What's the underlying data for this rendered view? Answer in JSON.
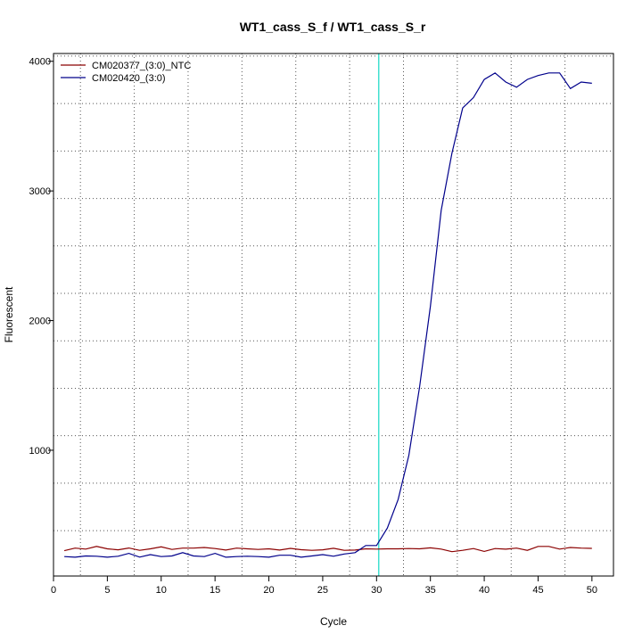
{
  "chart_data": {
    "type": "line",
    "title": "WT1_cass_S_f / WT1_cass_S_r",
    "xlabel": "Cycle",
    "ylabel": "Fluorescent",
    "xlim": [
      0,
      52
    ],
    "ylim": [
      30,
      4060
    ],
    "x_ticks": [
      "0",
      "5",
      "10",
      "15",
      "20",
      "25",
      "30",
      "35",
      "40",
      "45",
      "50"
    ],
    "y_ticks": [
      "1000",
      "2000",
      "3000",
      "4000"
    ],
    "grid": true,
    "legend_position": "top-left",
    "threshold_cycle": 30.2,
    "threshold_color": "#40e0d0",
    "x": [
      1,
      2,
      3,
      4,
      5,
      6,
      7,
      8,
      9,
      10,
      11,
      12,
      13,
      14,
      15,
      16,
      17,
      18,
      19,
      20,
      21,
      22,
      23,
      24,
      25,
      26,
      27,
      28,
      29,
      30,
      31,
      32,
      33,
      34,
      35,
      36,
      37,
      38,
      39,
      40,
      41,
      42,
      43,
      44,
      45,
      46,
      47,
      48,
      49,
      50
    ],
    "series": [
      {
        "name": "CM020377_(3:0)_NTC",
        "color": "#8b0000",
        "values": [
          225,
          245,
          238,
          258,
          240,
          232,
          246,
          228,
          240,
          255,
          235,
          245,
          245,
          250,
          242,
          230,
          245,
          240,
          235,
          240,
          230,
          243,
          233,
          228,
          232,
          244,
          228,
          230,
          240,
          238,
          240,
          240,
          242,
          240,
          247,
          238,
          218,
          228,
          242,
          220,
          242,
          237,
          245,
          228,
          258,
          258,
          238,
          250,
          245,
          243
        ]
      },
      {
        "name": "CM020420_(3:0)",
        "color": "#00008b",
        "values": [
          180,
          175,
          185,
          183,
          175,
          183,
          205,
          176,
          195,
          180,
          185,
          210,
          185,
          180,
          205,
          175,
          180,
          183,
          180,
          175,
          190,
          190,
          175,
          185,
          195,
          183,
          200,
          210,
          265,
          265,
          400,
          620,
          960,
          1490,
          2110,
          2850,
          3290,
          3640,
          3720,
          3860,
          3910,
          3840,
          3800,
          3860,
          3890,
          3910,
          3910,
          3790,
          3840,
          3830
        ]
      }
    ]
  }
}
